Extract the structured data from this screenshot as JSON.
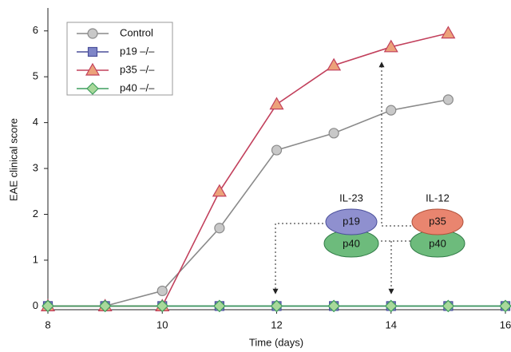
{
  "chart_data": {
    "type": "line",
    "xlabel": "Time (days)",
    "ylabel": "EAE clinical score",
    "x": [
      8,
      9,
      10,
      11,
      12,
      13,
      14,
      15,
      16
    ],
    "series": [
      {
        "name": "Control",
        "color": "#8a8a8a",
        "marker": "circle",
        "marker_color": "#c8c8c8",
        "values": [
          0,
          0,
          0.33,
          1.7,
          3.4,
          3.77,
          4.27,
          4.5,
          null
        ]
      },
      {
        "name": "p19 –/–",
        "color": "#4a4f9a",
        "marker": "square",
        "marker_color": "#7f86c8",
        "values": [
          0,
          0,
          0,
          0,
          0,
          0,
          0,
          0,
          0
        ]
      },
      {
        "name": "p35 –/–",
        "color": "#c2405c",
        "marker": "triangle",
        "marker_color": "#eca27a",
        "values": [
          0,
          0,
          0,
          2.5,
          4.4,
          5.25,
          5.65,
          5.95,
          null
        ]
      },
      {
        "name": "p40 –/–",
        "color": "#3f9e5e",
        "marker": "diamond",
        "marker_color": "#a8d89a",
        "values": [
          0,
          0,
          0,
          0,
          0,
          0,
          0,
          0,
          0
        ]
      }
    ],
    "xlim": [
      8,
      16
    ],
    "xticks": [
      8,
      10,
      12,
      14,
      16
    ],
    "ylim": [
      -0.08,
      6.5
    ],
    "yticks": [
      0,
      1,
      2,
      3,
      4,
      5,
      6
    ],
    "legend": "upper left",
    "annotations": [
      "IL-23",
      "IL-12",
      "p19",
      "p40",
      "p35",
      "p40"
    ]
  }
}
